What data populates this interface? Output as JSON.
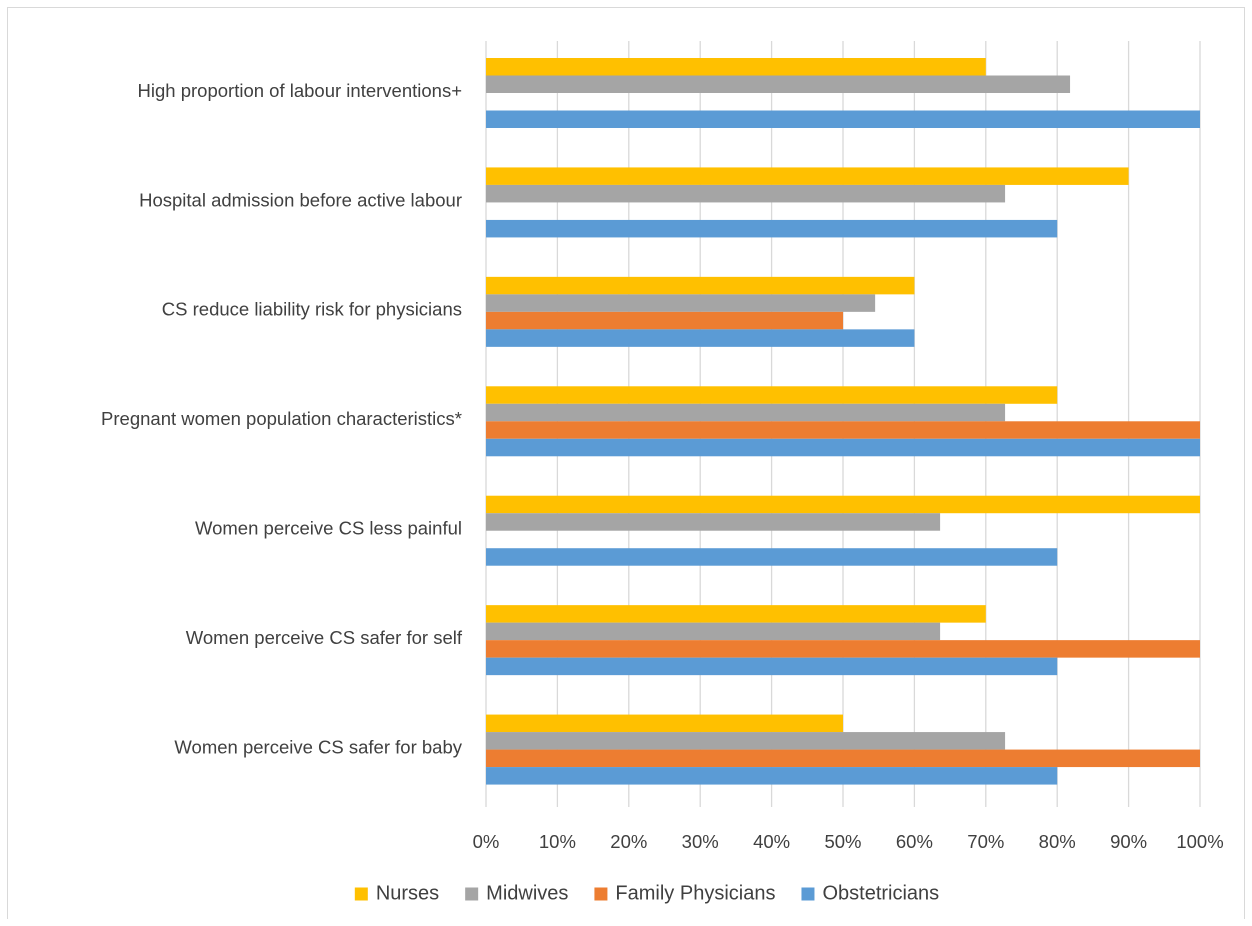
{
  "chart_data": {
    "type": "bar",
    "orientation": "horizontal",
    "title": "",
    "xlabel": "",
    "ylabel": "",
    "xlim": [
      0,
      100
    ],
    "tick_format": "percent",
    "x_ticks": [
      "0%",
      "10%",
      "20%",
      "30%",
      "40%",
      "50%",
      "60%",
      "70%",
      "80%",
      "90%",
      "100%"
    ],
    "grid": "vertical",
    "legend_position": "bottom",
    "categories": [
      "High proportion of labour interventions+",
      "Hospital admission before active labour",
      "CS reduce liability risk for physicians",
      "Pregnant women population characteristics*",
      "Women perceive CS less painful",
      "Women perceive CS safer for self",
      "Women perceive CS safer for baby"
    ],
    "series": [
      {
        "name": "Nurses",
        "color": "#ffc000",
        "values": [
          70,
          90,
          60,
          80,
          100,
          70,
          50
        ]
      },
      {
        "name": "Midwives",
        "color": "#a5a5a5",
        "values": [
          81.8,
          72.7,
          54.5,
          72.7,
          63.6,
          63.6,
          72.7
        ]
      },
      {
        "name": "Family Physicians",
        "color": "#ed7d31",
        "values": [
          0,
          0,
          50,
          100,
          0,
          100,
          100
        ]
      },
      {
        "name": "Obstetricians",
        "color": "#5b9bd5",
        "values": [
          100,
          80,
          60,
          100,
          80,
          80,
          80
        ]
      }
    ]
  }
}
